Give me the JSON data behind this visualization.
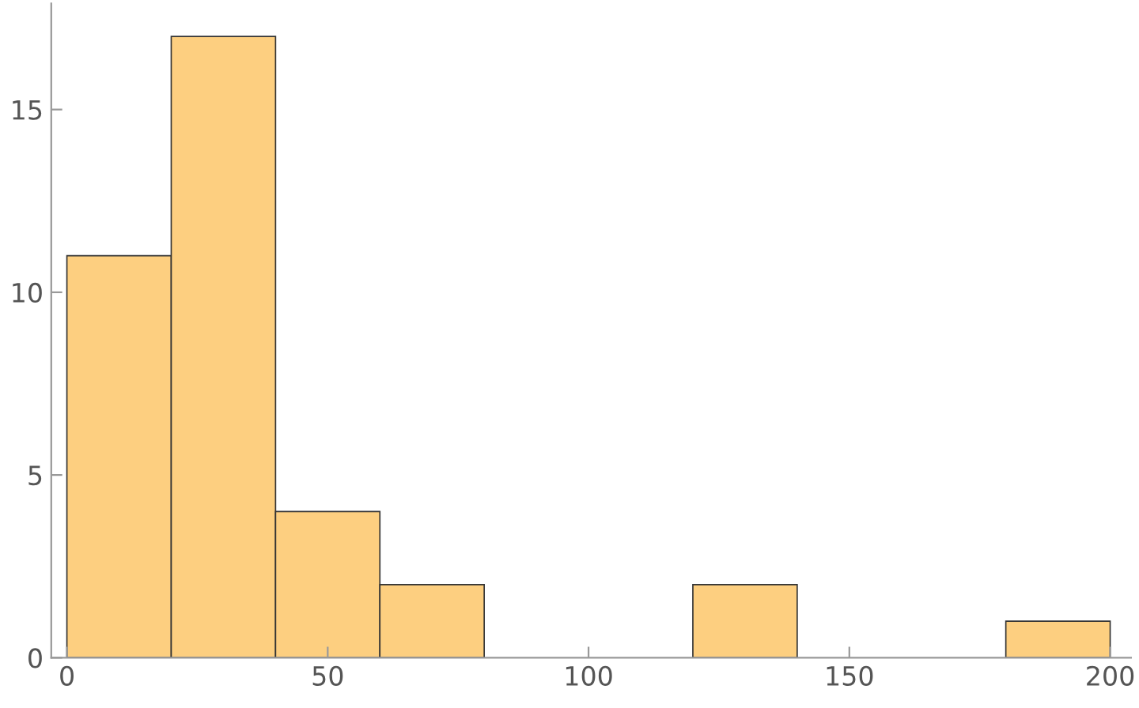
{
  "chart_data": {
    "type": "histogram",
    "bins": [
      0,
      20,
      40,
      60,
      80,
      100,
      120,
      140,
      160,
      180,
      200
    ],
    "values": [
      11,
      17,
      4,
      2,
      0,
      0,
      2,
      0,
      0,
      1
    ],
    "color": "#fdcf80",
    "xlim": [
      -3,
      204
    ],
    "ylim": [
      0,
      17.9
    ],
    "xticks": [
      0,
      50,
      100,
      150,
      200
    ],
    "yticks": [
      0,
      5,
      10,
      15
    ],
    "grid": false
  }
}
